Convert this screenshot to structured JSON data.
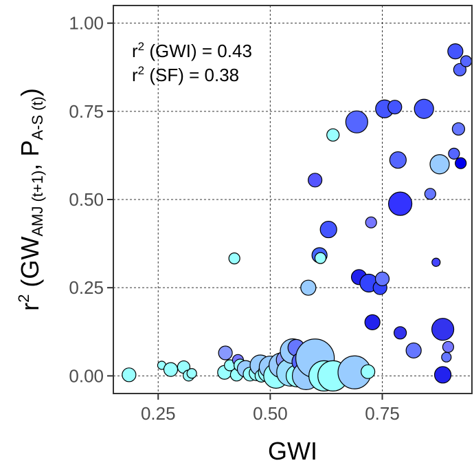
{
  "chart_data": {
    "type": "scatter",
    "xlabel": "GWI",
    "ylabel": {
      "prefix": "r",
      "sup": "2",
      "open": " (GW",
      "sub1": "AMJ (t+1)",
      "mid": ", P",
      "sub2": "A-S (t)",
      "close": ")"
    },
    "xlim": [
      0.15,
      0.95
    ],
    "ylim": [
      -0.05,
      1.05
    ],
    "x_ticks": [
      0.25,
      0.5,
      0.75
    ],
    "x_tick_labels": [
      "0.25",
      "0.50",
      "0.75"
    ],
    "y_ticks": [
      0.0,
      0.25,
      0.5,
      0.75,
      1.0
    ],
    "y_tick_labels": [
      "0.00",
      "0.25",
      "0.50",
      "0.75",
      "1.00"
    ],
    "grid": "dashed",
    "annotations": [
      {
        "prefix": "r",
        "sup": "2",
        "rest": " (GWI) = 0.43"
      },
      {
        "prefix": "r",
        "sup": "2",
        "rest": " (SF) = 0.38"
      }
    ],
    "color_scale": {
      "low": "#99ffff",
      "high": "#0000ff"
    },
    "points": [
      {
        "x": 0.185,
        "y": 0.003,
        "size": 10,
        "color": "#99ffff"
      },
      {
        "x": 0.258,
        "y": 0.03,
        "size": 6,
        "color": "#99ffff"
      },
      {
        "x": 0.278,
        "y": 0.018,
        "size": 10,
        "color": "#99ffff"
      },
      {
        "x": 0.307,
        "y": 0.025,
        "size": 9,
        "color": "#99ffff"
      },
      {
        "x": 0.318,
        "y": 0.001,
        "size": 8,
        "color": "#99ffff"
      },
      {
        "x": 0.325,
        "y": 0.007,
        "size": 7,
        "color": "#99ffff"
      },
      {
        "x": 0.42,
        "y": 0.333,
        "size": 8,
        "color": "#99ffff"
      },
      {
        "x": 0.4,
        "y": 0.065,
        "size": 10,
        "color": "#8899ff"
      },
      {
        "x": 0.398,
        "y": 0.01,
        "size": 10,
        "color": "#99ffff"
      },
      {
        "x": 0.41,
        "y": 0.03,
        "size": 8,
        "color": "#99ffff"
      },
      {
        "x": 0.425,
        "y": 0.003,
        "size": 9,
        "color": "#99ffff"
      },
      {
        "x": 0.428,
        "y": 0.045,
        "size": 8,
        "color": "#7777ff"
      },
      {
        "x": 0.433,
        "y": 0.03,
        "size": 9,
        "color": "#99ffff"
      },
      {
        "x": 0.445,
        "y": 0.02,
        "size": 12,
        "color": "#99ccff"
      },
      {
        "x": 0.455,
        "y": 0.005,
        "size": 10,
        "color": "#99ffff"
      },
      {
        "x": 0.47,
        "y": 0.008,
        "size": 11,
        "color": "#99ffff"
      },
      {
        "x": 0.478,
        "y": 0.03,
        "size": 15,
        "color": "#99ccff"
      },
      {
        "x": 0.48,
        "y": 0.0,
        "size": 9,
        "color": "#99ffff"
      },
      {
        "x": 0.495,
        "y": 0.01,
        "size": 14,
        "color": "#99ffff"
      },
      {
        "x": 0.5,
        "y": 0.025,
        "size": 16,
        "color": "#99ccff"
      },
      {
        "x": 0.505,
        "y": 0.005,
        "size": 12,
        "color": "#99ffff"
      },
      {
        "x": 0.513,
        "y": 0.0,
        "size": 18,
        "color": "#99ffff"
      },
      {
        "x": 0.525,
        "y": 0.03,
        "size": 18,
        "color": "#99ccff"
      },
      {
        "x": 0.535,
        "y": 0.045,
        "size": 14,
        "color": "#8899ff"
      },
      {
        "x": 0.545,
        "y": 0.01,
        "size": 20,
        "color": "#99ddff"
      },
      {
        "x": 0.55,
        "y": 0.07,
        "size": 18,
        "color": "#99ccff"
      },
      {
        "x": 0.558,
        "y": 0.08,
        "size": 12,
        "color": "#6677ff"
      },
      {
        "x": 0.56,
        "y": 0.0,
        "size": 16,
        "color": "#99ffff"
      },
      {
        "x": 0.57,
        "y": 0.04,
        "size": 14,
        "color": "#5566ff"
      },
      {
        "x": 0.58,
        "y": 0.0,
        "size": 20,
        "color": "#99ccff"
      },
      {
        "x": 0.6,
        "y": 0.05,
        "size": 28,
        "color": "#99ccff"
      },
      {
        "x": 0.62,
        "y": 0.0,
        "size": 22,
        "color": "#99ffff"
      },
      {
        "x": 0.64,
        "y": 0.0,
        "size": 22,
        "color": "#99ffff"
      },
      {
        "x": 0.688,
        "y": 0.01,
        "size": 24,
        "color": "#99ccff"
      },
      {
        "x": 0.718,
        "y": 0.012,
        "size": 10,
        "color": "#99ffff"
      },
      {
        "x": 0.64,
        "y": 0.683,
        "size": 9,
        "color": "#99ffff"
      },
      {
        "x": 0.585,
        "y": 0.25,
        "size": 11,
        "color": "#99ccff"
      },
      {
        "x": 0.61,
        "y": 0.342,
        "size": 11,
        "color": "#4466ff"
      },
      {
        "x": 0.612,
        "y": 0.334,
        "size": 8,
        "color": "#99ffff"
      },
      {
        "x": 0.63,
        "y": 0.415,
        "size": 12,
        "color": "#4455ff"
      },
      {
        "x": 0.6,
        "y": 0.555,
        "size": 10,
        "color": "#5555ff"
      },
      {
        "x": 0.693,
        "y": 0.72,
        "size": 16,
        "color": "#5566ff"
      },
      {
        "x": 0.698,
        "y": 0.28,
        "size": 11,
        "color": "#2222ee"
      },
      {
        "x": 0.72,
        "y": 0.263,
        "size": 13,
        "color": "#3344ff"
      },
      {
        "x": 0.725,
        "y": 0.435,
        "size": 8,
        "color": "#7777ff"
      },
      {
        "x": 0.728,
        "y": 0.152,
        "size": 11,
        "color": "#2222ee"
      },
      {
        "x": 0.745,
        "y": 0.25,
        "size": 10,
        "color": "#3344ff"
      },
      {
        "x": 0.75,
        "y": 0.275,
        "size": 10,
        "color": "#6677ff"
      },
      {
        "x": 0.755,
        "y": 0.757,
        "size": 13,
        "color": "#4455ff"
      },
      {
        "x": 0.778,
        "y": 0.762,
        "size": 10,
        "color": "#4455ff"
      },
      {
        "x": 0.785,
        "y": 0.612,
        "size": 12,
        "color": "#5566ff"
      },
      {
        "x": 0.79,
        "y": 0.488,
        "size": 17,
        "color": "#3333ff"
      },
      {
        "x": 0.79,
        "y": 0.122,
        "size": 9,
        "color": "#3333ee"
      },
      {
        "x": 0.82,
        "y": 0.072,
        "size": 11,
        "color": "#6677ff"
      },
      {
        "x": 0.843,
        "y": 0.757,
        "size": 14,
        "color": "#4455ff"
      },
      {
        "x": 0.857,
        "y": 0.516,
        "size": 8,
        "color": "#6677ff"
      },
      {
        "x": 0.87,
        "y": 0.322,
        "size": 6,
        "color": "#4444ff"
      },
      {
        "x": 0.878,
        "y": 0.6,
        "size": 14,
        "color": "#99ccff"
      },
      {
        "x": 0.885,
        "y": 0.132,
        "size": 16,
        "color": "#3333ee"
      },
      {
        "x": 0.885,
        "y": 0.003,
        "size": 12,
        "color": "#2222ee"
      },
      {
        "x": 0.893,
        "y": 0.053,
        "size": 7,
        "color": "#6677ff"
      },
      {
        "x": 0.897,
        "y": 0.082,
        "size": 8,
        "color": "#7777ff"
      },
      {
        "x": 0.91,
        "y": 0.63,
        "size": 8,
        "color": "#5566ff"
      },
      {
        "x": 0.913,
        "y": 0.92,
        "size": 11,
        "color": "#4455ff"
      },
      {
        "x": 0.92,
        "y": 0.7,
        "size": 9,
        "color": "#6677ff"
      },
      {
        "x": 0.923,
        "y": 0.868,
        "size": 9,
        "color": "#5566ff"
      },
      {
        "x": 0.925,
        "y": 0.603,
        "size": 8,
        "color": "#0000ee"
      },
      {
        "x": 0.937,
        "y": 0.892,
        "size": 8,
        "color": "#5566ff"
      }
    ]
  }
}
